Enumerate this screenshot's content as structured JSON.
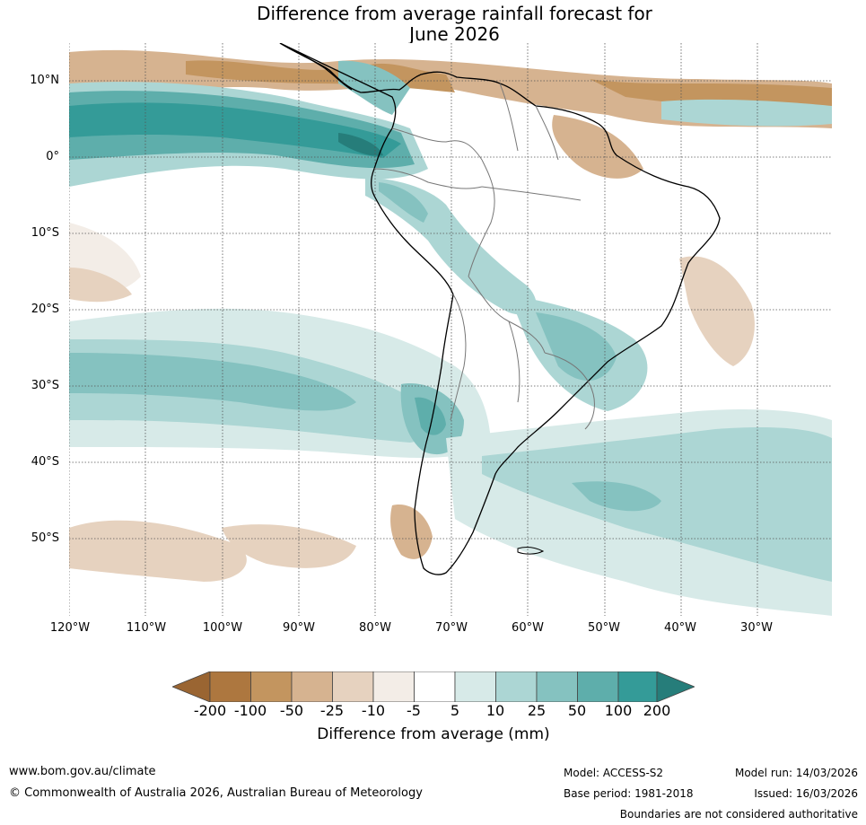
{
  "title": {
    "line1": "Difference from average rainfall forecast for",
    "line2": "June 2026"
  },
  "map": {
    "lat_labels": [
      "10°N",
      "0°",
      "10°S",
      "20°S",
      "30°S",
      "40°S",
      "50°S"
    ],
    "lon_labels": [
      "120°W",
      "110°W",
      "100°W",
      "90°W",
      "80°W",
      "70°W",
      "60°W",
      "50°W",
      "40°W",
      "30°W"
    ],
    "legend_colors": {
      "lt_-200": "#9a6532",
      "-200_-100": "#ad773f",
      "-100_-50": "#c3955f",
      "-50_-25": "#d6b390",
      "-25_-10": "#e6d2bf",
      "-10_-5": "#f3ede7",
      "-5_5": "#ffffff",
      "5_10": "#d7eae8",
      "10_25": "#acd6d4",
      "25_50": "#85c2c0",
      "50_100": "#5eaeab",
      "100_200": "#349b98",
      "gt_200": "#267d7a"
    }
  },
  "colorbar": {
    "ticks": [
      "-200",
      "-100",
      "-50",
      "-25",
      "-10",
      "-5",
      "5",
      "10",
      "25",
      "50",
      "100",
      "200"
    ],
    "label": "Difference from average (mm)"
  },
  "footer": {
    "url": "www.bom.gov.au/climate",
    "copyright": "© Commonwealth of Australia 2026, Australian Bureau of Meteorology",
    "model": "Model: ACCESS-S2",
    "base_period": "Base period: 1981-2018",
    "model_run": "Model run: 14/03/2026",
    "issued": "Issued: 16/03/2026",
    "disclaimer": "Boundaries are not considered authoritative"
  }
}
